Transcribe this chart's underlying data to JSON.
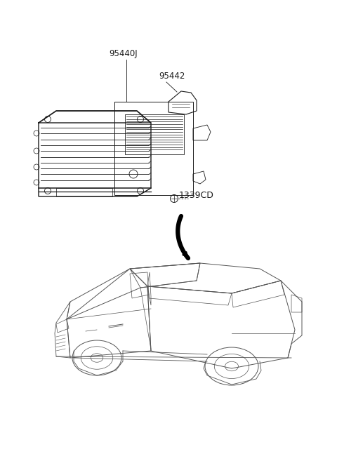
{
  "background_color": "#ffffff",
  "label_95440J": "95440J",
  "label_95442": "95442",
  "label_1339CD": "1339CD",
  "label_fontsize": 8.5,
  "line_color": "#1a1a1a",
  "line_color_light": "#555555",
  "arrow_color": "#000000",
  "fig_w": 4.8,
  "fig_h": 6.57,
  "dpi": 100
}
